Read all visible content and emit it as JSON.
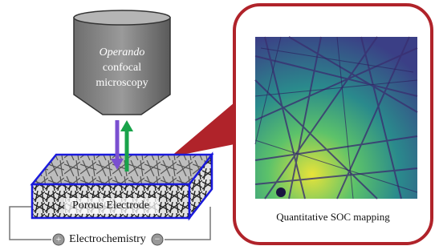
{
  "microscope": {
    "lines": [
      "Operando",
      "confocal",
      "microscopy"
    ]
  },
  "electrode": {
    "label": "Porous Electrode"
  },
  "circuit": {
    "label": "Electrochemistry",
    "positive": "+",
    "negative": "−"
  },
  "panel": {
    "caption": "Quantitative SOC mapping"
  }
}
